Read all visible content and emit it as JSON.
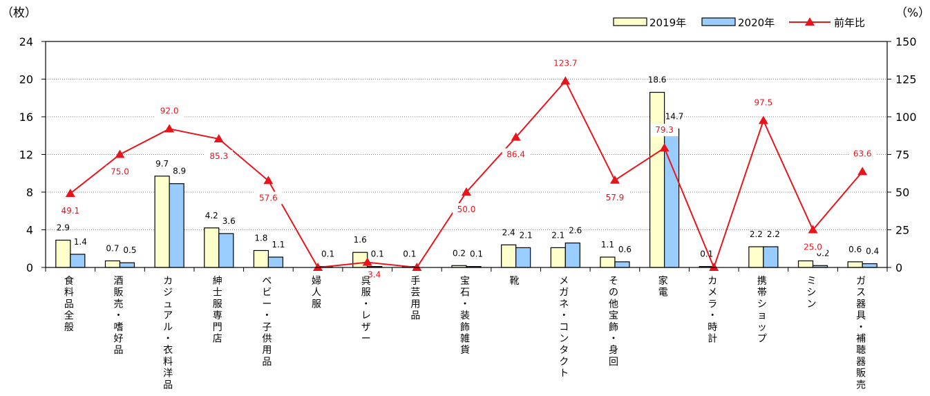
{
  "chart_data": {
    "type": "bar",
    "left_axis_unit": "（枚）",
    "right_axis_unit": "（%）",
    "y_left": {
      "min": 0,
      "max": 24,
      "ticks": [
        0,
        4,
        8,
        12,
        16,
        20,
        24
      ]
    },
    "y_right": {
      "min": 0,
      "max": 150,
      "ticks": [
        0,
        25,
        50,
        75,
        100,
        125,
        150
      ]
    },
    "grid": true,
    "legend_position": "top-right",
    "categories": [
      "食料品全般",
      "酒販売・嗜好品",
      "カジュアル・衣料洋品",
      "紳士服専門店",
      "ベビー・子供用品",
      "婦人服",
      "呉服・レザー",
      "手芸用品",
      "宝石・装飾雑貨",
      "靴",
      "メガネ・コンタクト",
      "その他宝飾・身回",
      "家電",
      "カメラ・時計",
      "携帯ショップ",
      "ミシン",
      "ガス器具・補聴器販売"
    ],
    "series": [
      {
        "name": "2019年",
        "axis": "left",
        "kind": "bar",
        "color": "#ffffcc",
        "values": [
          2.9,
          0.7,
          9.7,
          4.2,
          1.8,
          0.0,
          1.6,
          0.1,
          0.2,
          2.4,
          2.1,
          1.1,
          18.6,
          0.1,
          2.2,
          0.7,
          0.6
        ],
        "labels": [
          "2.9",
          "0.7",
          "9.7",
          "4.2",
          "1.8",
          "",
          "1.6",
          "0.1",
          "0.2",
          "2.4",
          "2.1",
          "1.1",
          "18.6",
          "0.1",
          "2.2",
          "0.7",
          "0.6"
        ]
      },
      {
        "name": "2020年",
        "axis": "left",
        "kind": "bar",
        "color": "#99ccff",
        "values": [
          1.4,
          0.5,
          8.9,
          3.6,
          1.1,
          0.1,
          0.1,
          0.0,
          0.1,
          2.1,
          2.6,
          0.6,
          14.7,
          0.0,
          2.2,
          0.2,
          0.4
        ],
        "labels": [
          "1.4",
          "0.5",
          "8.9",
          "3.6",
          "1.1",
          "0.1",
          "0.1",
          "",
          "0.1",
          "2.1",
          "2.6",
          "0.6",
          "14.7",
          "",
          "2.2",
          "0.2",
          "0.4"
        ]
      },
      {
        "name": "前年比",
        "axis": "right",
        "kind": "line",
        "color": "#e8141b",
        "values": [
          49.1,
          75.0,
          92.0,
          85.3,
          57.6,
          0.0,
          3.4,
          0.0,
          50.0,
          86.4,
          123.7,
          57.9,
          79.3,
          0.0,
          97.5,
          25.0,
          63.6
        ],
        "labels": [
          "49.1",
          "75.0",
          "92.0",
          "85.3",
          "57.6",
          "",
          "3.4",
          "",
          "50.0",
          "86.4",
          "123.7",
          "57.9",
          "79.3",
          "",
          "97.5",
          "25.0",
          "63.6"
        ]
      }
    ]
  }
}
